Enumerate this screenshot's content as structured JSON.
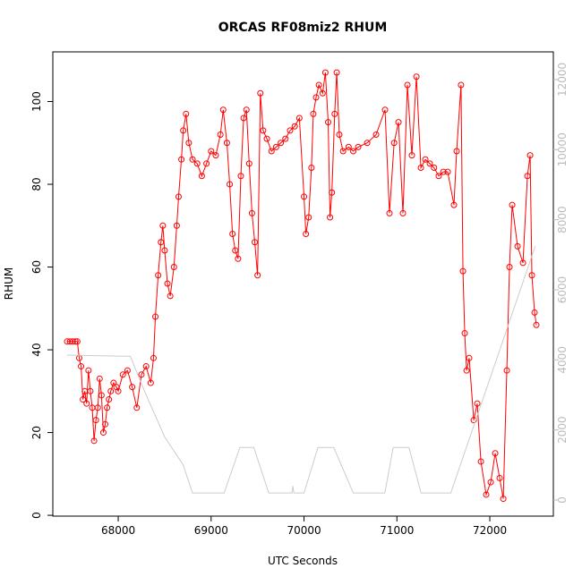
{
  "chart_data": {
    "type": "line",
    "title": "ORCAS RF08miz2 RHUM",
    "x_label": "UTC Seconds",
    "y_label": "RHUM",
    "xlim": [
      67296,
      72684
    ],
    "xticks": [
      68000,
      69000,
      70000,
      71000,
      72000
    ],
    "ylim": [
      -0.2,
      112
    ],
    "yticks": [
      0,
      20,
      40,
      60,
      80,
      100
    ],
    "y2lim": [
      -460,
      12790
    ],
    "y2ticks": [
      0,
      2000,
      4000,
      6000,
      8000,
      10000,
      12000
    ],
    "y2_color": "#bbbbbb",
    "series": [
      {
        "color": "#ff0000",
        "markers": true,
        "x": [
          67450,
          67480,
          67510,
          67540,
          67560,
          67580,
          67600,
          67620,
          67640,
          67660,
          67680,
          67700,
          67720,
          67740,
          67760,
          67780,
          67800,
          67820,
          67840,
          67860,
          67880,
          67900,
          67920,
          67950,
          67980,
          68000,
          68050,
          68100,
          68150,
          68200,
          68250,
          68300,
          68350,
          68380,
          68400,
          68430,
          68460,
          68480,
          68500,
          68530,
          68560,
          68600,
          68630,
          68650,
          68680,
          68700,
          68730,
          68760,
          68800,
          68850,
          68900,
          68950,
          69000,
          69050,
          69100,
          69130,
          69170,
          69200,
          69230,
          69260,
          69290,
          69320,
          69350,
          69380,
          69410,
          69440,
          69470,
          69500,
          69530,
          69560,
          69600,
          69650,
          69700,
          69750,
          69800,
          69850,
          69900,
          69950,
          70000,
          70020,
          70050,
          70080,
          70100,
          70130,
          70160,
          70200,
          70230,
          70260,
          70280,
          70300,
          70330,
          70352,
          70380,
          70420,
          70480,
          70530,
          70583,
          70680,
          70776,
          70872,
          70920,
          70970,
          71017,
          71065,
          71113,
          71161,
          71210,
          71258,
          71306,
          71354,
          71400,
          71450,
          71500,
          71547,
          71614,
          71643,
          71690,
          71711,
          71730,
          71750,
          71778,
          71827,
          71865,
          71904,
          71961,
          72010,
          72058,
          72106,
          72145,
          72183,
          72212,
          72241,
          72299,
          72357,
          72405,
          72434,
          72453,
          72482,
          72501
        ],
        "values": [
          42,
          42,
          42,
          42,
          42,
          38,
          36,
          28,
          30,
          27,
          35,
          30,
          26,
          18,
          23,
          26,
          33,
          29,
          20,
          22,
          26,
          28,
          30,
          32,
          31,
          30,
          34,
          35,
          31,
          26,
          34,
          36,
          32,
          38,
          48,
          58,
          66,
          70,
          64,
          56,
          53,
          60,
          70,
          77,
          86,
          93,
          97,
          90,
          86,
          85,
          82,
          85,
          88,
          87,
          92,
          98,
          90,
          80,
          68,
          64,
          62,
          82,
          96,
          98,
          85,
          73,
          66,
          58,
          102,
          93,
          91,
          88,
          89,
          90,
          91,
          93,
          94,
          96,
          77,
          68,
          72,
          84,
          97,
          101,
          104,
          102,
          107,
          95,
          72,
          78,
          97,
          107,
          92,
          88,
          89,
          88,
          89,
          90,
          92,
          98,
          73,
          90,
          95,
          73,
          104,
          87,
          106,
          84,
          86,
          85,
          84,
          82,
          83,
          83,
          75,
          88,
          104,
          59,
          44,
          35,
          38,
          23,
          27,
          13,
          5,
          8,
          15,
          9,
          4,
          35,
          60,
          75,
          65,
          61,
          82,
          87,
          58,
          49,
          46
        ]
      },
      {
        "color": "#cccccc",
        "axis": "y2",
        "x": [
          67450,
          68130,
          68300,
          68500,
          68650,
          68700,
          68800,
          69140,
          69310,
          69460,
          69620,
          69870,
          69880,
          69890,
          70000,
          70150,
          70320,
          70530,
          70870,
          70960,
          71130,
          71260,
          71580,
          72490
        ],
        "values": [
          4136,
          4100,
          3000,
          1800,
          1200,
          1000,
          200,
          200,
          1500,
          1500,
          200,
          200,
          400,
          200,
          200,
          1500,
          1500,
          200,
          200,
          1500,
          1500,
          200,
          200,
          7250
        ]
      }
    ]
  }
}
